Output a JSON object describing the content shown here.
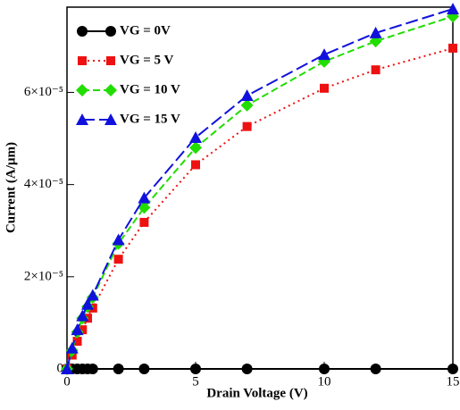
{
  "chart_data": {
    "type": "line",
    "x_label": "Drain Voltage (V)",
    "y_label": "Current (A/µm)",
    "x": [
      0,
      0.2,
      0.4,
      0.6,
      0.8,
      1,
      2,
      3,
      5,
      7,
      10,
      12,
      15
    ],
    "series": [
      {
        "name": "VG = 0V",
        "color": "#000000",
        "marker": "circle",
        "dash": "solid",
        "values": [
          0,
          0,
          0,
          0,
          0,
          0,
          0,
          0,
          0,
          0,
          0,
          0,
          0
        ]
      },
      {
        "name": "VG = 5 V",
        "color": "#ee1111",
        "marker": "square",
        "dash": "dotted",
        "values": [
          0,
          3e-06,
          6e-06,
          8.5e-06,
          1.1e-05,
          1.32e-05,
          2.38e-05,
          3.18e-05,
          4.43e-05,
          5.26e-05,
          6.09e-05,
          6.49e-05,
          6.96e-05
        ]
      },
      {
        "name": "VG = 10 V",
        "color": "#22dd00",
        "marker": "diamond",
        "dash": "dashed",
        "values": [
          0,
          4e-06,
          8e-06,
          1.1e-05,
          1.35e-05,
          1.55e-05,
          2.72e-05,
          3.5e-05,
          4.8e-05,
          5.72e-05,
          6.67e-05,
          7.11e-05,
          7.65e-05
        ]
      },
      {
        "name": "VG = 15 V",
        "color": "#1111dd",
        "marker": "triangle",
        "dash": "longdash",
        "values": [
          0,
          4.5e-06,
          8.5e-06,
          1.15e-05,
          1.4e-05,
          1.6e-05,
          2.8e-05,
          3.71e-05,
          5.02e-05,
          5.93e-05,
          6.82e-05,
          7.29e-05,
          7.81e-05
        ]
      }
    ],
    "xlim": [
      0,
      15
    ],
    "xticks": [
      0,
      5,
      10,
      15
    ],
    "ylim": [
      0,
      7.85e-05
    ],
    "yticks": [
      0,
      {
        "value": 2e-05,
        "label": "2×10⁻⁵"
      },
      {
        "value": 4e-05,
        "label": "4×10⁻⁵"
      },
      {
        "value": 6e-05,
        "label": "6×10⁻⁵"
      }
    ],
    "legend": "upper left"
  }
}
